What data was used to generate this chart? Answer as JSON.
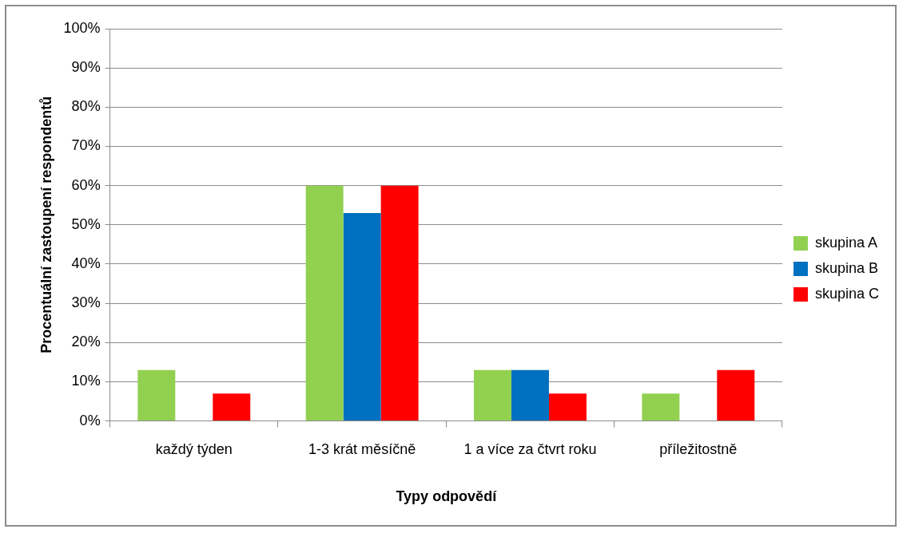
{
  "chart_data": {
    "type": "bar",
    "xlabel": "Typy odpovědí",
    "ylabel": "Procentuální zastoupení respondentů",
    "categories": [
      "každý týden",
      "1-3 krát měsíčně",
      "1 a více za čtvrt roku",
      "příležitostně"
    ],
    "series": [
      {
        "name": "skupina A",
        "color": "#92d050",
        "values": [
          13,
          60,
          13,
          7
        ]
      },
      {
        "name": "skupina B",
        "color": "#0070c0",
        "values": [
          0,
          53,
          13,
          0
        ]
      },
      {
        "name": "skupina C",
        "color": "#ff0000",
        "values": [
          7,
          60,
          7,
          13
        ]
      }
    ],
    "ylim": [
      0,
      100
    ],
    "yticks": [
      {
        "value": 0,
        "label": "0%"
      },
      {
        "value": 10,
        "label": "10%"
      },
      {
        "value": 20,
        "label": "20%"
      },
      {
        "value": 30,
        "label": "30%"
      },
      {
        "value": 40,
        "label": "40%"
      },
      {
        "value": 50,
        "label": "50%"
      },
      {
        "value": 60,
        "label": "60%"
      },
      {
        "value": 70,
        "label": "70%"
      },
      {
        "value": 80,
        "label": "80%"
      },
      {
        "value": 90,
        "label": "90%"
      },
      {
        "value": 100,
        "label": "100%"
      }
    ],
    "grid": "y",
    "legend": "right"
  }
}
